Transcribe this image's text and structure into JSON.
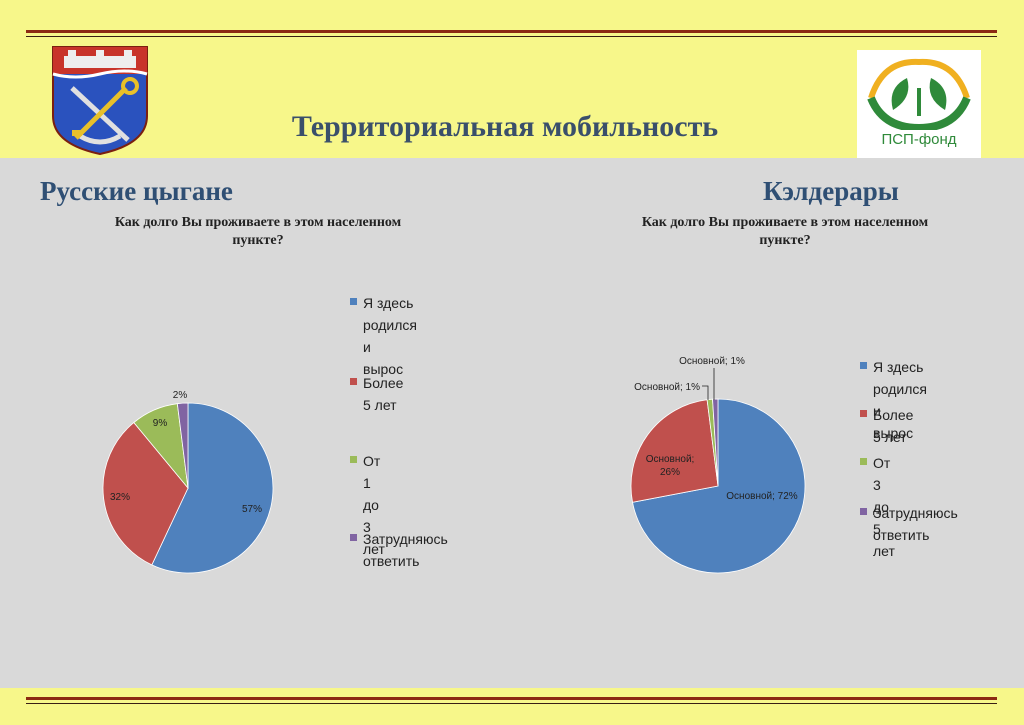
{
  "page": {
    "title": "Территориальная мобильность"
  },
  "logo": {
    "text": "ПСП-фонд"
  },
  "colors": {
    "background": "#f7f78a",
    "panel": "#d9d9d9",
    "rule": "#8c2a12",
    "blue": "#4f81bd",
    "red": "#c0504d",
    "green": "#9bbb59",
    "purple": "#8064a2"
  },
  "left": {
    "section_title": "Русские цыгане",
    "question_line1": "Как долго Вы проживаете в этом населенном",
    "question_line2": "пункте?",
    "legend": [
      {
        "lines": [
          "Я здесь",
          "родился и",
          "вырос"
        ],
        "color": "#4f81bd"
      },
      {
        "lines": [
          "Более 5 лет"
        ],
        "color": "#c0504d"
      },
      {
        "lines": [
          "От 1 до 3 лет"
        ],
        "color": "#9bbb59"
      },
      {
        "lines": [
          "Затрудняюсь",
          "ответить"
        ],
        "color": "#8064a2"
      }
    ]
  },
  "right": {
    "section_title": "Кэлдерары",
    "question_line1": "Как долго Вы проживаете в этом населенном",
    "question_line2": "пункте?",
    "legend": [
      {
        "lines": [
          "Я здесь родился и",
          "вырос"
        ],
        "color": "#4f81bd"
      },
      {
        "lines": [
          "Более 5 лет"
        ],
        "color": "#c0504d"
      },
      {
        "lines": [
          "От 3 до 5 лет"
        ],
        "color": "#9bbb59"
      },
      {
        "lines": [
          "Затрудняюсь",
          "ответить"
        ],
        "color": "#8064a2"
      }
    ]
  },
  "chart_data": [
    {
      "type": "pie",
      "title": "Как долго Вы проживаете в этом населенном пункте?",
      "categories": [
        "Я здесь родился и вырос",
        "Более 5 лет",
        "От 1 до 3 лет",
        "Затрудняюсь ответить"
      ],
      "values": [
        57,
        32,
        9,
        2
      ],
      "labels": [
        "57%",
        "32%",
        "9%",
        "2%"
      ],
      "colors": [
        "#4f81bd",
        "#c0504d",
        "#9bbb59",
        "#8064a2"
      ],
      "legend": "right"
    },
    {
      "type": "pie",
      "title": "Как долго Вы проживаете в этом населенном пункте?",
      "categories": [
        "Я здесь родился и вырос",
        "Более 5 лет",
        "От 3 до 5 лет",
        "Затрудняюсь ответить"
      ],
      "values": [
        72,
        26,
        1,
        1
      ],
      "labels": [
        "Основной; 72%",
        "Основной; 26%",
        "Основной; 1%",
        "Основной; 1%"
      ],
      "colors": [
        "#4f81bd",
        "#c0504d",
        "#9bbb59",
        "#8064a2"
      ],
      "legend": "right"
    }
  ]
}
